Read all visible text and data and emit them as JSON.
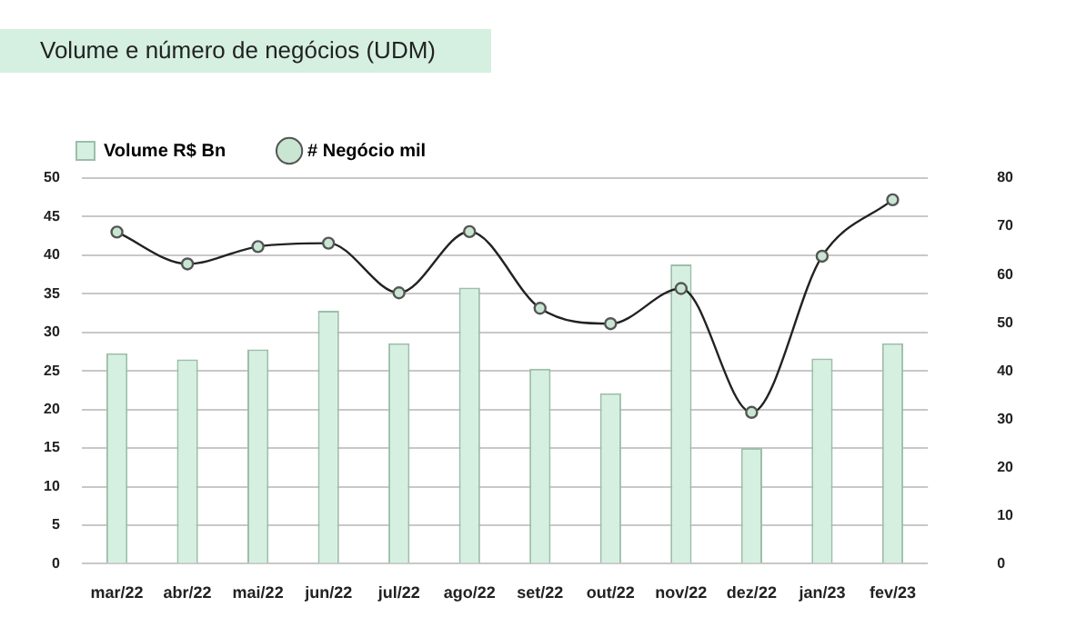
{
  "chart_data": {
    "type": "bar",
    "title": "Volume e número de negócios (UDM)",
    "categories": [
      "mar/22",
      "abr/22",
      "mai/22",
      "jun/22",
      "jul/22",
      "ago/22",
      "set/22",
      "out/22",
      "nov/22",
      "dez/22",
      "jan/23",
      "fev/23"
    ],
    "series": [
      {
        "name": "Volume R$ Bn",
        "color": "#d5f0e0",
        "values": [
          27.3,
          26.5,
          27.8,
          32.8,
          28.6,
          35.8,
          25.3,
          22.1,
          38.8,
          15,
          26.6,
          28.6
        ]
      },
      {
        "name": "# Negócio mil",
        "type": "line",
        "axis": "y2",
        "color": "#222222",
        "values": [
          68.8,
          62.2,
          65.8,
          66.5,
          56.2,
          68.9,
          53,
          49.8,
          57.1,
          31.4,
          63.8,
          75.5
        ]
      }
    ],
    "ylim": [
      0,
      50
    ],
    "yticks": [
      0,
      5,
      10,
      15,
      20,
      25,
      30,
      35,
      40,
      45,
      50
    ],
    "y2lim": [
      0,
      80
    ],
    "y2ticks": [
      0,
      10,
      20,
      30,
      40,
      50,
      60,
      70,
      80
    ],
    "grid": "y",
    "legend": "top left",
    "marker": "circle"
  }
}
